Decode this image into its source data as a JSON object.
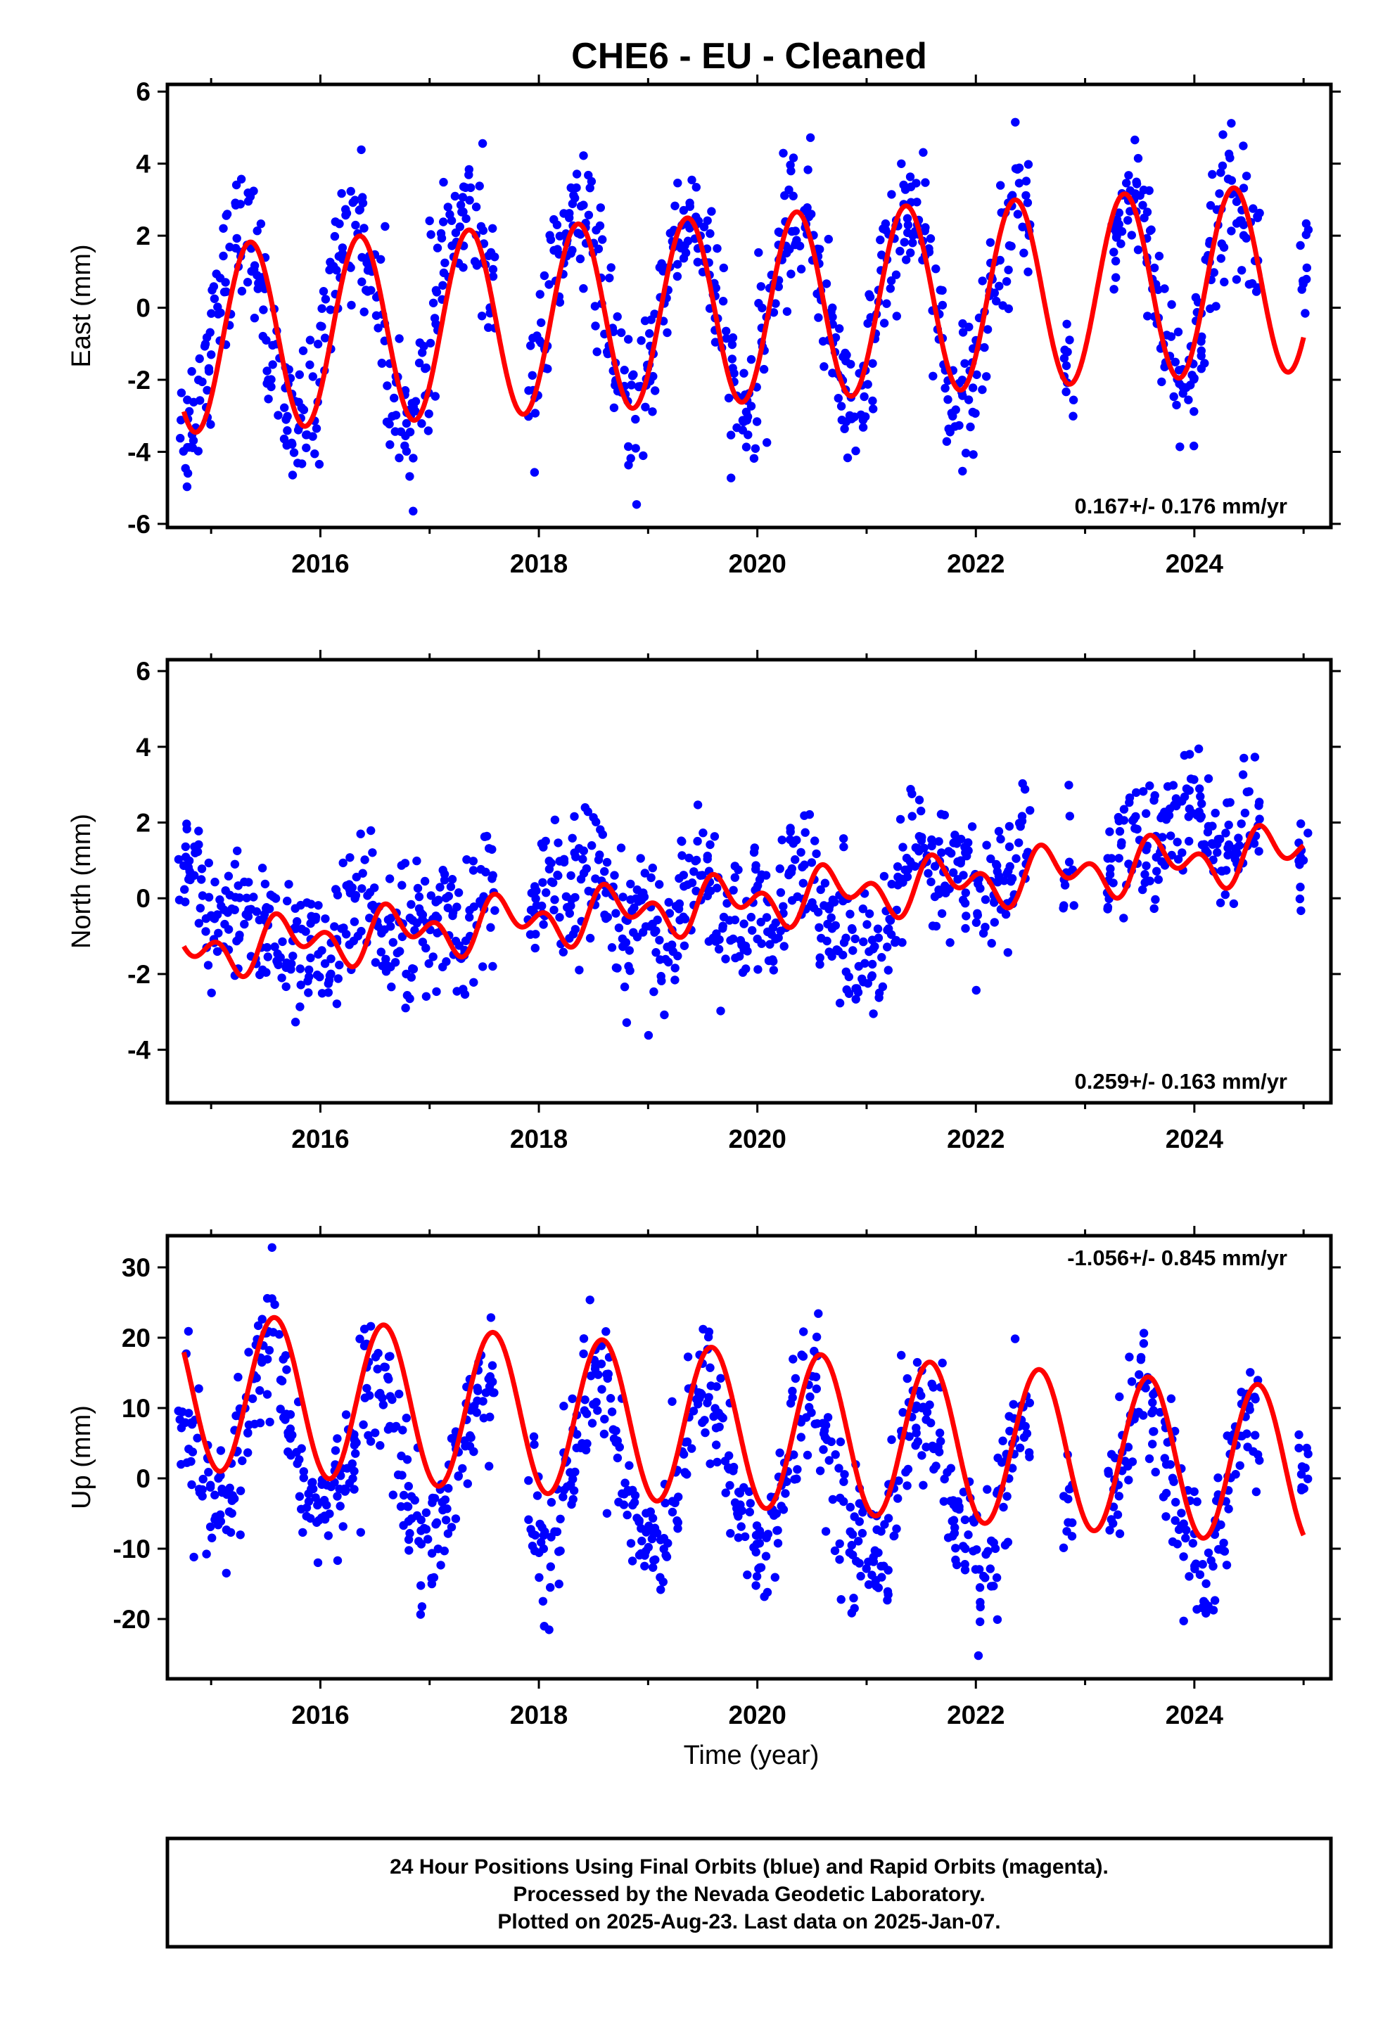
{
  "chart_data": {
    "type": "scatter",
    "title": "CHE6  - EU - Cleaned",
    "xlabel": "Time (year)",
    "x_ticks": [
      "2016",
      "2018",
      "2020",
      "2022",
      "2024"
    ],
    "xlim": [
      2014.6,
      2025.25
    ],
    "colors": {
      "data": "#0000ff",
      "fit": "#ff0000"
    },
    "panels": [
      {
        "name": "east",
        "ylabel": "East (mm)",
        "ylim": [
          -6.1,
          6.2
        ],
        "y_ticks": [
          -6,
          -4,
          -2,
          0,
          2,
          4,
          6
        ],
        "rate_text": "0.167+/- 0.176 mm/yr",
        "rate_position": "bottom-right",
        "series": [
          {
            "name": "",
            "kind": "points",
            "x": [
              2014.75,
              2014.85,
              2014.95,
              2015.05,
              2015.15,
              2015.25,
              2015.35,
              2015.45,
              2015.55,
              2015.65,
              2015.75,
              2015.85,
              2015.95,
              2016.05,
              2016.15,
              2016.25,
              2016.35,
              2016.45,
              2016.55,
              2016.65,
              2016.75,
              2016.85,
              2016.95,
              2017.05,
              2017.15,
              2017.25,
              2017.35,
              2017.45,
              2017.55,
              2017.95,
              2018.05,
              2018.15,
              2018.25,
              2018.35,
              2018.45,
              2018.55,
              2018.65,
              2018.75,
              2018.85,
              2018.95,
              2019.05,
              2019.15,
              2019.25,
              2019.35,
              2019.45,
              2019.55,
              2019.65,
              2019.75,
              2019.85,
              2019.95,
              2020.05,
              2020.15,
              2020.25,
              2020.35,
              2020.45,
              2020.55,
              2020.65,
              2020.75,
              2020.85,
              2020.95,
              2021.05,
              2021.15,
              2021.25,
              2021.35,
              2021.45,
              2021.55,
              2021.65,
              2021.75,
              2021.85,
              2021.95,
              2022.05,
              2022.15,
              2022.25,
              2022.35,
              2022.45,
              2022.85,
              2023.25,
              2023.35,
              2023.45,
              2023.55,
              2023.65,
              2023.75,
              2023.85,
              2023.95,
              2024.05,
              2024.15,
              2024.25,
              2024.35,
              2024.45,
              2024.55,
              2025.0
            ],
            "y": [
              -3.5,
              -2.6,
              -1.6,
              0.2,
              1.2,
              1.9,
              1.8,
              0.6,
              -1.2,
              -2.6,
              -3.5,
              -3.2,
              -2.3,
              -0.3,
              1.4,
              2.2,
              2.4,
              1.3,
              -0.4,
              -2.2,
              -3.3,
              -3.4,
              -2.0,
              -0.1,
              1.4,
              2.1,
              2.6,
              2.0,
              0.6,
              -1.9,
              -0.7,
              1.1,
              1.9,
              2.5,
              2.2,
              1.0,
              -0.8,
              -2.4,
              -3.1,
              -2.4,
              -1.2,
              0.6,
              1.7,
              2.4,
              2.4,
              1.4,
              -0.3,
              -2.1,
              -3.0,
              -2.8,
              -1.3,
              0.8,
              2.1,
              2.7,
              2.5,
              1.3,
              -0.4,
              -2.0,
              -2.8,
              -2.3,
              -0.9,
              0.8,
              2.0,
              2.6,
              2.4,
              1.4,
              -0.3,
              -1.9,
              -2.6,
              -2.4,
              -1.3,
              0.4,
              1.9,
              2.8,
              2.4,
              -1.4,
              1.6,
              3.0,
              3.2,
              2.4,
              0.8,
              -1.2,
              -2.2,
              -2.0,
              -0.6,
              1.5,
              2.8,
              3.2,
              2.8,
              1.6,
              1.1
            ]
          },
          {
            "name": "",
            "kind": "fit",
            "offset": 0.0,
            "trend": 0.167,
            "annual_amp": 2.6,
            "annual_peak": 0.36,
            "semi_amp": 0.0,
            "semi_peak": 0.0
          }
        ]
      },
      {
        "name": "north",
        "ylabel": "North (mm)",
        "ylim": [
          -5.4,
          6.3
        ],
        "y_ticks": [
          -4,
          -2,
          0,
          2,
          4,
          6
        ],
        "rate_text": "0.259+/- 0.163 mm/yr",
        "rate_position": "bottom-right",
        "series": [
          {
            "name": "",
            "kind": "points",
            "x": [
              2014.75,
              2014.85,
              2014.95,
              2015.05,
              2015.15,
              2015.25,
              2015.35,
              2015.45,
              2015.55,
              2015.65,
              2015.75,
              2015.85,
              2015.95,
              2016.05,
              2016.15,
              2016.25,
              2016.35,
              2016.45,
              2016.55,
              2016.65,
              2016.75,
              2016.85,
              2016.95,
              2017.05,
              2017.15,
              2017.25,
              2017.35,
              2017.45,
              2017.55,
              2017.95,
              2018.05,
              2018.15,
              2018.25,
              2018.35,
              2018.45,
              2018.55,
              2018.65,
              2018.75,
              2018.85,
              2018.95,
              2019.05,
              2019.15,
              2019.25,
              2019.35,
              2019.45,
              2019.55,
              2019.65,
              2019.75,
              2019.85,
              2019.95,
              2020.05,
              2020.15,
              2020.25,
              2020.35,
              2020.45,
              2020.55,
              2020.65,
              2020.75,
              2020.85,
              2020.95,
              2021.05,
              2021.15,
              2021.25,
              2021.35,
              2021.45,
              2021.55,
              2021.65,
              2021.75,
              2021.85,
              2021.95,
              2022.05,
              2022.15,
              2022.25,
              2022.35,
              2022.45,
              2022.85,
              2023.25,
              2023.35,
              2023.45,
              2023.55,
              2023.65,
              2023.75,
              2023.85,
              2023.95,
              2024.05,
              2024.15,
              2024.25,
              2024.35,
              2024.45,
              2024.55,
              2025.0
            ],
            "y": [
              0.8,
              0.2,
              -0.6,
              -0.9,
              -1.1,
              -0.7,
              -0.3,
              -0.6,
              -1.0,
              -1.3,
              -1.5,
              -1.1,
              -1.4,
              -1.8,
              -1.2,
              -0.6,
              -0.3,
              -0.2,
              -0.7,
              -0.9,
              -0.6,
              -0.9,
              -1.2,
              -0.8,
              -0.4,
              -0.6,
              -0.9,
              -0.2,
              0.3,
              -0.5,
              0.2,
              0.1,
              -0.5,
              0.4,
              0.9,
              0.6,
              -0.1,
              -0.5,
              -0.8,
              -0.3,
              -0.7,
              -1.2,
              -0.3,
              0.5,
              0.8,
              0.4,
              -0.4,
              -0.6,
              -0.9,
              -0.3,
              -0.8,
              -1.1,
              -0.2,
              0.9,
              1.0,
              0.3,
              -0.5,
              -0.7,
              -0.9,
              -1.3,
              -1.6,
              -1.8,
              -0.6,
              1.0,
              1.3,
              0.7,
              0.3,
              0.6,
              0.8,
              0.5,
              -0.3,
              0.0,
              0.6,
              0.9,
              1.6,
              0.8,
              0.4,
              1.3,
              1.8,
              1.5,
              1.0,
              1.6,
              2.3,
              2.5,
              2.1,
              1.7,
              1.4,
              1.2,
              1.8,
              1.6,
              0.4
            ]
          },
          {
            "name": "",
            "kind": "fit",
            "offset": -0.05,
            "trend": 0.259,
            "annual_amp": 0.45,
            "annual_peak": 0.7,
            "semi_amp": 0.45,
            "semi_peak": 0.07
          }
        ]
      },
      {
        "name": "up",
        "ylabel": "Up (mm)",
        "ylim": [
          -28.5,
          34.5
        ],
        "y_ticks": [
          -20,
          -10,
          0,
          10,
          20,
          30
        ],
        "rate_text": "-1.056+/- 0.845 mm/yr",
        "rate_position": "top-right",
        "series": [
          {
            "name": "",
            "kind": "points",
            "x": [
              2014.75,
              2014.85,
              2014.95,
              2015.05,
              2015.15,
              2015.25,
              2015.35,
              2015.45,
              2015.55,
              2015.65,
              2015.75,
              2015.85,
              2015.95,
              2016.05,
              2016.15,
              2016.25,
              2016.35,
              2016.45,
              2016.55,
              2016.65,
              2016.75,
              2016.85,
              2016.95,
              2017.05,
              2017.15,
              2017.25,
              2017.35,
              2017.45,
              2017.55,
              2017.95,
              2018.05,
              2018.15,
              2018.25,
              2018.35,
              2018.45,
              2018.55,
              2018.65,
              2018.75,
              2018.85,
              2018.95,
              2019.05,
              2019.15,
              2019.25,
              2019.35,
              2019.45,
              2019.55,
              2019.65,
              2019.75,
              2019.85,
              2019.95,
              2020.05,
              2020.15,
              2020.25,
              2020.35,
              2020.45,
              2020.55,
              2020.65,
              2020.75,
              2020.85,
              2020.95,
              2021.05,
              2021.15,
              2021.25,
              2021.35,
              2021.45,
              2021.55,
              2021.65,
              2021.75,
              2021.85,
              2021.95,
              2022.05,
              2022.15,
              2022.25,
              2022.35,
              2022.45,
              2022.85,
              2023.25,
              2023.35,
              2023.45,
              2023.55,
              2023.65,
              2023.75,
              2023.85,
              2023.95,
              2024.05,
              2024.15,
              2024.25,
              2024.35,
              2024.45,
              2024.55,
              2025.0
            ],
            "y": [
              9.0,
              3.0,
              -2.0,
              -6.0,
              -4.0,
              2.0,
              9.0,
              15.0,
              18.0,
              14.0,
              6.0,
              -1.0,
              -4.0,
              -5.0,
              -3.0,
              2.0,
              8.0,
              13.0,
              14.0,
              9.0,
              2.0,
              -4.0,
              -7.0,
              -8.0,
              -4.0,
              2.0,
              8.0,
              12.0,
              11.0,
              -2.0,
              -9.0,
              -7.0,
              -1.0,
              6.0,
              12.0,
              14.0,
              11.0,
              4.0,
              -3.0,
              -8.0,
              -9.0,
              -7.0,
              -2.0,
              6.0,
              11.0,
              13.0,
              9.0,
              2.0,
              -5.0,
              -9.0,
              -10.0,
              -7.0,
              0.0,
              7.0,
              12.0,
              11.0,
              5.0,
              -3.0,
              -8.0,
              -10.0,
              -11.0,
              -9.0,
              -2.0,
              6.0,
              10.0,
              9.0,
              4.0,
              -3.0,
              -8.0,
              -10.0,
              -12.0,
              -10.0,
              -2.0,
              3.0,
              6.0,
              -6.0,
              -2.0,
              4.0,
              10.0,
              13.0,
              9.0,
              3.0,
              -4.0,
              -10.0,
              -13.0,
              -11.0,
              -6.0,
              2.0,
              7.0,
              9.0,
              -1.0
            ]
          },
          {
            "name": "",
            "kind": "fit",
            "offset": 7.0,
            "trend": -1.056,
            "annual_amp": 11.2,
            "annual_peak": 0.58,
            "semi_amp": 0.0,
            "semi_peak": 0.0
          }
        ]
      }
    ]
  },
  "footer": {
    "line1": "24 Hour Positions Using Final Orbits (blue) and Rapid Orbits (magenta).",
    "line2": "Processed by the Nevada Geodetic Laboratory.",
    "line3": "Plotted on 2025-Aug-23. Last data on 2025-Jan-07."
  }
}
